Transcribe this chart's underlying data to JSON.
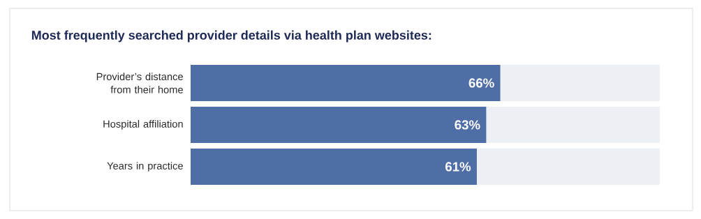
{
  "chart_data": {
    "type": "bar",
    "orientation": "horizontal",
    "title": "Most frequently searched provider details via health plan websites:",
    "categories": [
      "Provider’s distance from their home",
      "Hospital affiliation",
      "Years in practice"
    ],
    "series": [
      {
        "color": "#4f6ea5",
        "values": [
          66,
          63,
          61
        ],
        "value_labels": [
          "66%",
          "63%",
          "61%"
        ]
      }
    ],
    "xlim": [
      0,
      100
    ],
    "tick_labels": "y"
  }
}
